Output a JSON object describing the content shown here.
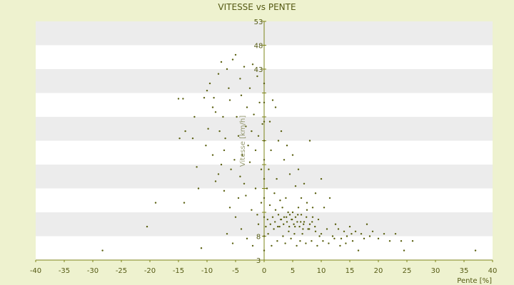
{
  "chart_data": {
    "type": "scatter",
    "title": "VITESSE vs PENTE",
    "xlabel": "Pente [%]",
    "ylabel": "Vitesse [km/h]",
    "xlim": [
      -40,
      40
    ],
    "ylim": [
      3,
      53
    ],
    "x_ticks": [
      -40,
      -35,
      -30,
      -25,
      -20,
      -15,
      -10,
      -5,
      0,
      5,
      10,
      15,
      20,
      25,
      30,
      35,
      40
    ],
    "y_ticks": [
      3,
      8,
      13,
      18,
      23,
      28,
      33,
      38,
      43,
      48,
      53
    ],
    "y_tick_labels": [
      "3",
      "8",
      "",
      "",
      "",
      "",
      "",
      "",
      "43",
      "48",
      "53"
    ],
    "grid": "horizontal-bands",
    "marker_color": "#5a6010",
    "band_color": "#ececec",
    "axis_color": "#7d8418",
    "points": [
      [
        -28.3,
        5.0
      ],
      [
        -20.5,
        10.0
      ],
      [
        -19.0,
        15.0
      ],
      [
        -15.0,
        36.8
      ],
      [
        -14.2,
        36.8
      ],
      [
        -14.0,
        15.0
      ],
      [
        -13.8,
        30.0
      ],
      [
        -14.8,
        28.5
      ],
      [
        -12.5,
        28.5
      ],
      [
        -11.5,
        18.0
      ],
      [
        -11.0,
        5.5
      ],
      [
        -10.5,
        37.0
      ],
      [
        -10.0,
        38.5
      ],
      [
        -9.5,
        40.0
      ],
      [
        -9.0,
        35.0
      ],
      [
        -8.5,
        34.0
      ],
      [
        -8.0,
        42.0
      ],
      [
        -7.8,
        30.0
      ],
      [
        -7.5,
        44.5
      ],
      [
        -7.0,
        26.0
      ],
      [
        -6.5,
        43.0
      ],
      [
        -6.2,
        39.0
      ],
      [
        -6.0,
        36.5
      ],
      [
        -5.8,
        22.0
      ],
      [
        -5.5,
        45.0
      ],
      [
        -5.0,
        46.0
      ],
      [
        -4.8,
        33.0
      ],
      [
        -4.5,
        29.0
      ],
      [
        -4.2,
        41.0
      ],
      [
        -4.0,
        37.5
      ],
      [
        -3.8,
        25.0
      ],
      [
        -3.5,
        43.5
      ],
      [
        -3.2,
        31.0
      ],
      [
        -3.0,
        35.0
      ],
      [
        -2.8,
        27.0
      ],
      [
        -2.5,
        39.0
      ],
      [
        -2.2,
        30.0
      ],
      [
        -2.0,
        44.0
      ],
      [
        -1.8,
        33.5
      ],
      [
        -1.5,
        26.0
      ],
      [
        -1.2,
        41.5
      ],
      [
        -1.0,
        29.0
      ],
      [
        -0.8,
        36.0
      ],
      [
        -0.5,
        22.0
      ],
      [
        -0.3,
        31.5
      ],
      [
        -9.0,
        25.0
      ],
      [
        -8.0,
        21.0
      ],
      [
        -7.0,
        17.5
      ],
      [
        -6.0,
        14.0
      ],
      [
        -5.0,
        12.0
      ],
      [
        -4.0,
        9.5
      ],
      [
        -3.0,
        7.5
      ],
      [
        -2.0,
        6.0
      ],
      [
        -1.0,
        10.5
      ],
      [
        -6.5,
        8.5
      ],
      [
        -5.5,
        6.5
      ],
      [
        -4.5,
        16.0
      ],
      [
        -3.5,
        19.0
      ],
      [
        -2.5,
        23.5
      ],
      [
        -1.5,
        18.0
      ],
      [
        -0.5,
        15.0
      ],
      [
        -8.5,
        19.5
      ],
      [
        -7.5,
        23.0
      ],
      [
        -9.8,
        30.5
      ],
      [
        -10.2,
        27.0
      ],
      [
        -11.8,
        22.5
      ],
      [
        -12.2,
        33.0
      ],
      [
        -8.8,
        37.0
      ],
      [
        -7.2,
        33.0
      ],
      [
        -6.8,
        28.5
      ],
      [
        -5.2,
        24.0
      ],
      [
        -4.2,
        20.5
      ],
      [
        -3.2,
        16.5
      ],
      [
        -2.2,
        13.5
      ],
      [
        -1.2,
        12.5
      ],
      [
        0.0,
        28.0
      ],
      [
        0.0,
        24.0
      ],
      [
        0.0,
        20.0
      ],
      [
        0.0,
        16.0
      ],
      [
        0.0,
        12.0
      ],
      [
        0.0,
        8.0
      ],
      [
        0.0,
        5.0
      ],
      [
        0.0,
        36.0
      ],
      [
        0.0,
        32.0
      ],
      [
        0.0,
        40.0
      ],
      [
        0.5,
        18.0
      ],
      [
        0.8,
        22.0
      ],
      [
        1.0,
        14.5
      ],
      [
        1.2,
        26.0
      ],
      [
        1.5,
        12.0
      ],
      [
        1.8,
        17.0
      ],
      [
        2.0,
        13.5
      ],
      [
        2.2,
        20.0
      ],
      [
        2.5,
        12.5
      ],
      [
        2.8,
        15.5
      ],
      [
        3.0,
        11.5
      ],
      [
        3.2,
        14.0
      ],
      [
        3.5,
        12.0
      ],
      [
        3.8,
        16.0
      ],
      [
        4.0,
        11.0
      ],
      [
        4.2,
        13.0
      ],
      [
        4.5,
        12.5
      ],
      [
        4.8,
        11.5
      ],
      [
        5.0,
        13.0
      ],
      [
        5.2,
        10.5
      ],
      [
        5.5,
        12.0
      ],
      [
        5.8,
        11.0
      ],
      [
        6.0,
        14.0
      ],
      [
        6.2,
        10.0
      ],
      [
        6.5,
        12.5
      ],
      [
        6.8,
        9.5
      ],
      [
        7.0,
        11.0
      ],
      [
        7.5,
        13.5
      ],
      [
        8.0,
        10.5
      ],
      [
        8.5,
        12.0
      ],
      [
        9.0,
        9.0
      ],
      [
        9.5,
        11.5
      ],
      [
        10.0,
        8.5
      ],
      [
        10.5,
        14.0
      ],
      [
        11.0,
        9.5
      ],
      [
        11.5,
        16.0
      ],
      [
        12.0,
        8.0
      ],
      [
        12.5,
        10.5
      ],
      [
        13.0,
        9.5
      ],
      [
        13.5,
        7.5
      ],
      [
        14.0,
        9.0
      ],
      [
        14.5,
        8.0
      ],
      [
        15.0,
        10.0
      ],
      [
        15.5,
        7.0
      ],
      [
        16.0,
        9.0
      ],
      [
        16.5,
        5.0
      ],
      [
        17.0,
        8.5
      ],
      [
        17.5,
        7.5
      ],
      [
        18.0,
        10.5
      ],
      [
        18.5,
        8.0
      ],
      [
        19.0,
        9.0
      ],
      [
        20.0,
        7.5
      ],
      [
        21.0,
        8.5
      ],
      [
        22.0,
        7.0
      ],
      [
        23.0,
        8.5
      ],
      [
        24.0,
        7.0
      ],
      [
        24.5,
        5.0
      ],
      [
        26.0,
        7.0
      ],
      [
        37.0,
        5.0
      ],
      [
        1.0,
        32.0
      ],
      [
        2.0,
        35.0
      ],
      [
        3.0,
        30.0
      ],
      [
        4.0,
        27.0
      ],
      [
        5.0,
        25.0
      ],
      [
        6.0,
        22.0
      ],
      [
        7.0,
        19.0
      ],
      [
        8.0,
        28.0
      ],
      [
        9.0,
        17.0
      ],
      [
        10.0,
        20.0
      ],
      [
        1.5,
        36.5
      ],
      [
        2.5,
        28.0
      ],
      [
        3.5,
        24.0
      ],
      [
        4.5,
        21.0
      ],
      [
        5.5,
        18.5
      ],
      [
        6.5,
        16.0
      ],
      [
        7.5,
        15.0
      ],
      [
        8.5,
        14.0
      ],
      [
        0.7,
        8.5
      ],
      [
        1.3,
        6.0
      ],
      [
        1.7,
        9.5
      ],
      [
        2.3,
        7.0
      ],
      [
        2.7,
        10.0
      ],
      [
        3.3,
        8.0
      ],
      [
        3.7,
        6.5
      ],
      [
        4.3,
        9.0
      ],
      [
        4.7,
        7.5
      ],
      [
        5.3,
        8.5
      ],
      [
        5.7,
        6.0
      ],
      [
        6.3,
        7.0
      ],
      [
        6.7,
        8.5
      ],
      [
        7.3,
        6.5
      ],
      [
        7.7,
        9.5
      ],
      [
        8.3,
        7.0
      ],
      [
        9.3,
        6.0
      ],
      [
        9.7,
        8.0
      ],
      [
        10.3,
        7.0
      ],
      [
        11.3,
        6.5
      ],
      [
        12.3,
        7.5
      ],
      [
        13.3,
        6.0
      ],
      [
        14.3,
        6.5
      ],
      [
        15.3,
        8.5
      ],
      [
        0.3,
        10.0
      ],
      [
        0.6,
        11.5
      ],
      [
        1.1,
        10.5
      ],
      [
        1.9,
        11.0
      ],
      [
        2.4,
        10.0
      ],
      [
        2.9,
        11.5
      ],
      [
        3.4,
        10.5
      ],
      [
        3.9,
        12.0
      ],
      [
        4.4,
        10.0
      ],
      [
        4.9,
        11.5
      ],
      [
        5.4,
        10.0
      ],
      [
        5.9,
        12.5
      ],
      [
        6.4,
        11.0
      ],
      [
        6.9,
        10.5
      ],
      [
        7.4,
        12.0
      ],
      [
        7.9,
        9.5
      ],
      [
        8.4,
        11.0
      ],
      [
        8.9,
        10.0
      ]
    ]
  }
}
